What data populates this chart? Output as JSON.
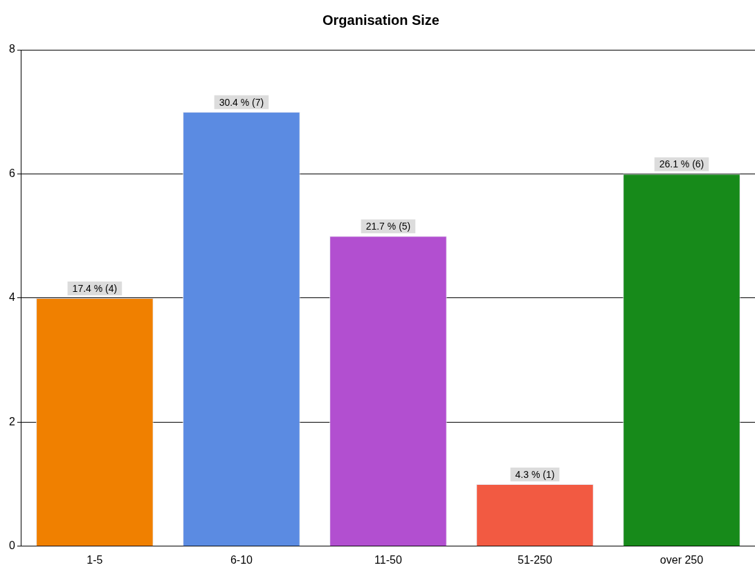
{
  "chart_data": {
    "type": "bar",
    "title": "Organisation Size",
    "categories": [
      "1-5",
      "6-10",
      "11-50",
      "51-250",
      "over 250"
    ],
    "values": [
      4,
      7,
      5,
      1,
      6
    ],
    "colors": [
      "#f08000",
      "#5b8be2",
      "#b24fd0",
      "#f25a42",
      "#178a1a"
    ],
    "value_labels": [
      "17.4 % (4)",
      "30.4 % (7)",
      "21.7 % (5)",
      "4.3 % (1)",
      "26.1 % (6)"
    ],
    "ylim": [
      0,
      8
    ],
    "yticks": [
      0,
      2,
      4,
      6,
      8
    ],
    "grid": "y",
    "legend": false
  }
}
